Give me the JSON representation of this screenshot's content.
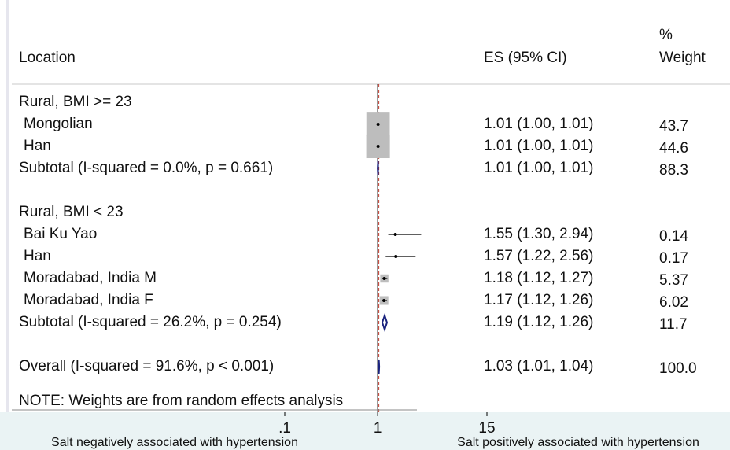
{
  "chart_data": {
    "type": "forest",
    "log_scale": true,
    "columns": {
      "location": "Location",
      "es": "ES (95% CI)",
      "weight_unit": "%",
      "weight": "Weight"
    },
    "groups": [
      {
        "label": "Rural, BMI >= 23",
        "studies": [
          {
            "label": "Mongolian",
            "es": 1.01,
            "ci": [
              1.0,
              1.01
            ],
            "es_label": "1.01 (1.00, 1.01)",
            "weight": 43.7
          },
          {
            "label": "Han",
            "es": 1.01,
            "ci": [
              1.0,
              1.01
            ],
            "es_label": "1.01 (1.00, 1.01)",
            "weight": 44.6
          }
        ],
        "subtotal": {
          "label": "Subtotal  (I-squared = 0.0%, p = 0.661)",
          "es": 1.01,
          "ci": [
            1.0,
            1.01
          ],
          "es_label": "1.01 (1.00, 1.01)",
          "weight": 88.3
        }
      },
      {
        "label": "Rural, BMI < 23",
        "studies": [
          {
            "label": "Bai Ku Yao",
            "es": 1.55,
            "ci": [
              1.3,
              2.94
            ],
            "es_label": "1.55 (1.30, 2.94)",
            "weight": 0.14
          },
          {
            "label": "Han",
            "es": 1.57,
            "ci": [
              1.22,
              2.56
            ],
            "es_label": "1.57 (1.22, 2.56)",
            "weight": 0.17
          },
          {
            "label": "Moradabad, India   M",
            "es": 1.18,
            "ci": [
              1.12,
              1.27
            ],
            "es_label": "1.18 (1.12, 1.27)",
            "weight": 5.37
          },
          {
            "label": "Moradabad, India   F",
            "es": 1.17,
            "ci": [
              1.12,
              1.26
            ],
            "es_label": "1.17 (1.12, 1.26)",
            "weight": 6.02
          }
        ],
        "subtotal": {
          "label": "Subtotal  (I-squared = 26.2%, p = 0.254)",
          "es": 1.19,
          "ci": [
            1.12,
            1.26
          ],
          "es_label": "1.19 (1.12, 1.26)",
          "weight": 11.7
        }
      }
    ],
    "overall": {
      "label": "Overall  (I-squared = 91.6%, p < 0.001)",
      "es": 1.03,
      "ci": [
        1.01,
        1.04
      ],
      "es_label": "1.03 (1.01, 1.04)",
      "weight": {
        "value": 100,
        "label": "100.0"
      }
    },
    "note": "NOTE: Weights are from random effects analysis",
    "reference_line": 1,
    "xlim": [
      0.1,
      15
    ],
    "xticks": [
      {
        "value": 0.1,
        "label": ".1"
      },
      1,
      15
    ],
    "axis_labels": {
      "left": "Salt negatively associated with hypertension",
      "right": "Salt positively associated with hypertension"
    }
  }
}
